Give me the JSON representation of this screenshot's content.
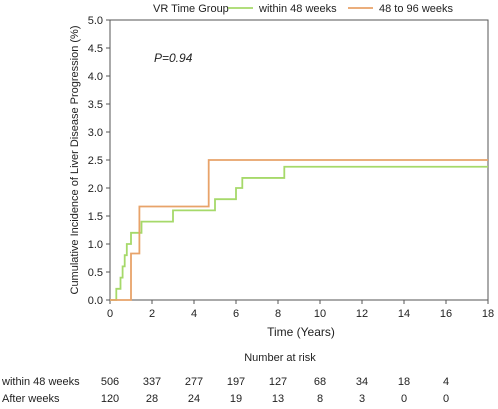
{
  "chart_data": {
    "type": "line",
    "step": true,
    "legend": {
      "title": "VR Time Group",
      "position": "top"
    },
    "ylabel": "Cumulative Incidence of Liver Disease Progression (%)",
    "xlabel": "Time (Years)",
    "xlim": [
      0,
      18
    ],
    "ylim": [
      0,
      5
    ],
    "x_ticks": [
      "0",
      "2",
      "4",
      "6",
      "8",
      "10",
      "12",
      "14",
      "16",
      "18"
    ],
    "y_ticks": [
      "0.0",
      "0.5",
      "1.0",
      "1.5",
      "2.0",
      "2.5",
      "3.0",
      "3.5",
      "4.0",
      "4.5",
      "5.0"
    ],
    "annotation": "P=0.94",
    "series": [
      {
        "name": "within 48 weeks",
        "color": "#a6d96a",
        "points": [
          [
            0,
            0
          ],
          [
            0.3,
            0.2
          ],
          [
            0.5,
            0.4
          ],
          [
            0.6,
            0.6
          ],
          [
            0.7,
            0.8
          ],
          [
            0.8,
            1.0
          ],
          [
            1.0,
            1.2
          ],
          [
            1.5,
            1.4
          ],
          [
            3.0,
            1.6
          ],
          [
            5.0,
            1.8
          ],
          [
            6.0,
            2.0
          ],
          [
            6.3,
            2.18
          ],
          [
            8.3,
            2.38
          ],
          [
            18,
            2.38
          ]
        ]
      },
      {
        "name": "48 to 96 weeks",
        "color": "#e8a36a",
        "points": [
          [
            0,
            0
          ],
          [
            1.0,
            0.83
          ],
          [
            1.4,
            1.67
          ],
          [
            4.7,
            2.5
          ],
          [
            18,
            2.5
          ]
        ]
      }
    ],
    "grid": false
  },
  "risk_table": {
    "title": "Number at risk",
    "x": [
      0,
      2,
      4,
      6,
      8,
      10,
      12,
      14,
      16
    ],
    "rows": [
      {
        "label": "within 48 weeks",
        "values": [
          "506",
          "337",
          "277",
          "197",
          "127",
          "68",
          "34",
          "18",
          "4"
        ]
      },
      {
        "label": "After weeks",
        "values": [
          "120",
          "28",
          "24",
          "19",
          "13",
          "8",
          "3",
          "0",
          "0"
        ]
      }
    ]
  }
}
